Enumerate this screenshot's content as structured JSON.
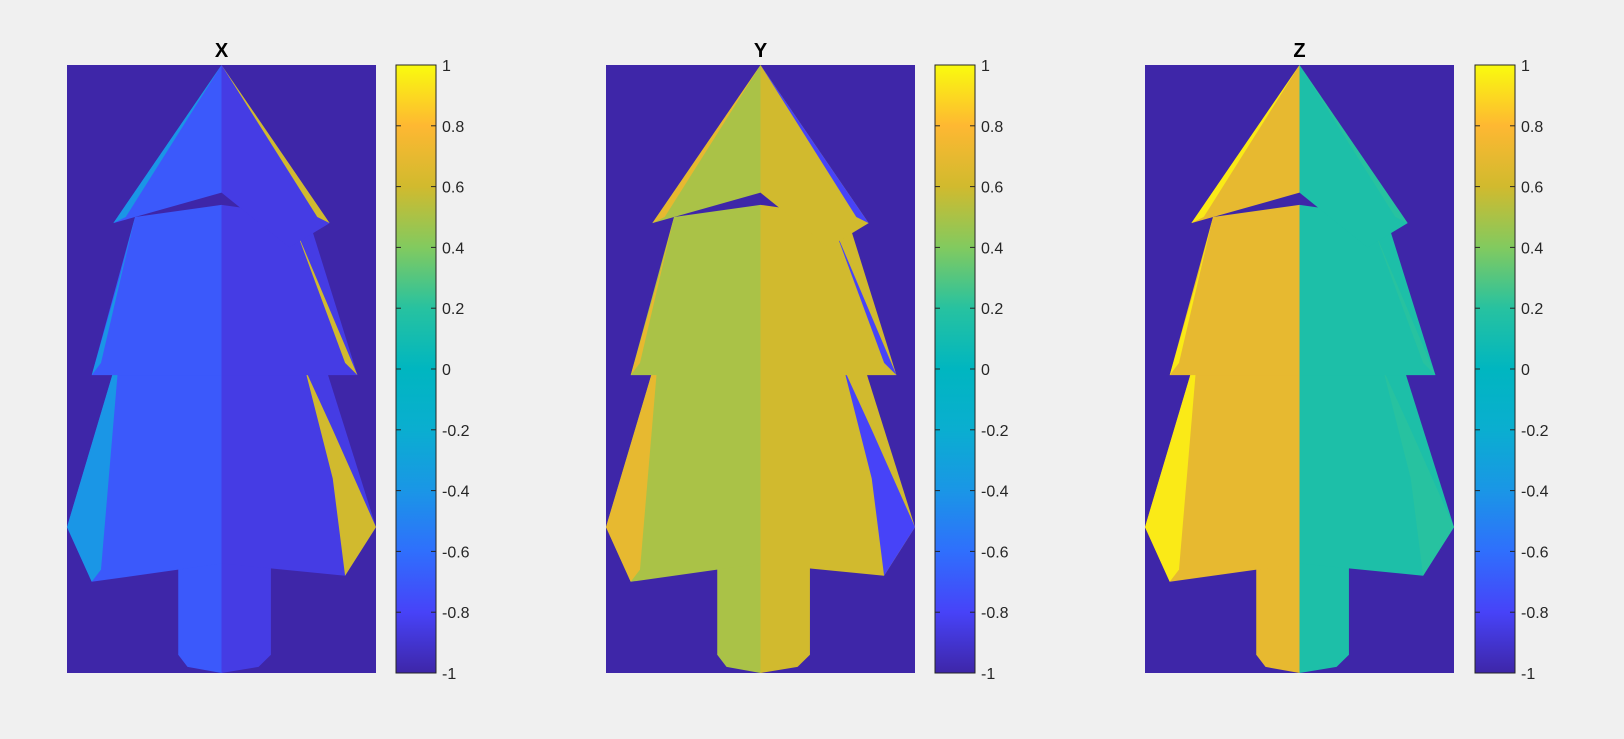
{
  "colormap": "parula",
  "colors": {
    "background": "#f0f0f0",
    "axes_background": "#3e26a8",
    "colorbar_low": "#3e26a8",
    "colorbar_mid": "#00b6c0",
    "colorbar_high": "#f9fb0e"
  },
  "chart_data": [
    {
      "type": "heatmap",
      "title": "X",
      "subject": "tree mesh, normal-vector X component",
      "xlabel": "",
      "ylabel": "",
      "background_value": -1,
      "dominant_values": {
        "left_half": -0.7,
        "right_half": -0.85,
        "left_rim": -0.4,
        "right_rim": 0.6
      },
      "colorbar": {
        "clim": [
          -1,
          1
        ],
        "tick_labels": [
          "1",
          "0.8",
          "0.6",
          "0.4",
          "0.2",
          "0",
          "-0.2",
          "-0.4",
          "-0.6",
          "-0.8",
          "-1"
        ]
      }
    },
    {
      "type": "heatmap",
      "title": "Y",
      "subject": "tree mesh, normal-vector Y component",
      "xlabel": "",
      "ylabel": "",
      "background_value": -1,
      "dominant_values": {
        "left_half": 0.5,
        "right_half": 0.6,
        "left_rim": 0.7,
        "right_rim": -0.8
      },
      "colorbar": {
        "clim": [
          -1,
          1
        ],
        "tick_labels": [
          "1",
          "0.8",
          "0.6",
          "0.4",
          "0.2",
          "0",
          "-0.2",
          "-0.4",
          "-0.6",
          "-0.8",
          "-1"
        ]
      }
    },
    {
      "type": "heatmap",
      "title": "Z",
      "subject": "tree mesh, normal-vector Z component",
      "xlabel": "",
      "ylabel": "",
      "background_value": -1,
      "dominant_values": {
        "left_half": 0.7,
        "right_half": 0.15,
        "left_rim": 0.95,
        "right_rim": 0.2
      },
      "colorbar": {
        "clim": [
          -1,
          1
        ],
        "tick_labels": [
          "1",
          "0.8",
          "0.6",
          "0.4",
          "0.2",
          "0",
          "-0.2",
          "-0.4",
          "-0.6",
          "-0.8",
          "-1"
        ]
      }
    }
  ]
}
